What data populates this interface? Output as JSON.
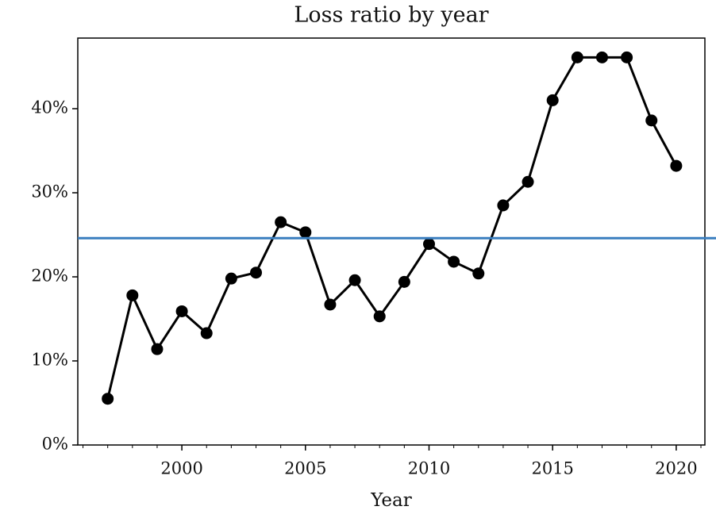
{
  "chart_data": {
    "type": "line",
    "title": "Loss ratio by year",
    "xlabel": "Year",
    "x": [
      1997,
      1998,
      1999,
      2000,
      2001,
      2002,
      2003,
      2004,
      2005,
      2006,
      2007,
      2008,
      2009,
      2010,
      2011,
      2012,
      2013,
      2014,
      2015,
      2016,
      2017,
      2018,
      2019,
      2020
    ],
    "series": [
      {
        "color": "#000000",
        "values": [
          5.5,
          17.8,
          11.4,
          15.9,
          13.3,
          19.8,
          20.5,
          26.5,
          25.3,
          16.7,
          19.6,
          15.3,
          19.4,
          23.9,
          21.8,
          20.4,
          28.5,
          31.3,
          41.0,
          46.1,
          46.1,
          46.1,
          38.6,
          33.2
        ]
      }
    ],
    "hlines": [
      {
        "value": 24.6,
        "color": "#3a7ebf"
      }
    ],
    "xlim": [
      1995.79,
      2021.16
    ],
    "xticks": [
      2000,
      2005,
      2010,
      2015,
      2020
    ],
    "xminorticks": [
      1996,
      1997,
      1998,
      1999,
      2001,
      2002,
      2003,
      2004,
      2006,
      2007,
      2008,
      2009,
      2011,
      2012,
      2013,
      2014,
      2016,
      2017,
      2018,
      2019,
      2021
    ],
    "ylim": [
      0,
      48.4
    ],
    "yticks": [
      {
        "value": 0,
        "label": "0%"
      },
      {
        "value": 10,
        "label": "10%"
      },
      {
        "value": 20,
        "label": "20%"
      },
      {
        "value": 30,
        "label": "30%"
      },
      {
        "value": 40,
        "label": "40%"
      }
    ],
    "grid": false
  }
}
